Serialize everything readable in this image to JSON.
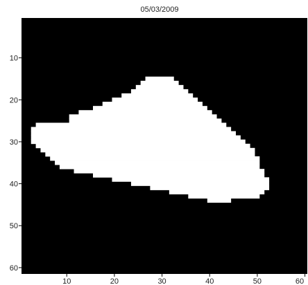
{
  "chart_data": {
    "type": "heatmap",
    "title": "05/03/2009",
    "xlabel": "",
    "ylabel": "",
    "xlim": [
      0.5,
      60.5
    ],
    "ylim": [
      0.5,
      61.5
    ],
    "x_ticks": [
      10,
      20,
      30,
      40,
      50,
      60
    ],
    "y_ticks": [
      10,
      20,
      30,
      40,
      50,
      60
    ],
    "grid": false,
    "colormap": {
      "background": "#000000",
      "mask": "#ffffff"
    },
    "mask_rows": [
      {
        "row": 15,
        "x_ranges": [
          [
            27,
            32
          ]
        ]
      },
      {
        "row": 16,
        "x_ranges": [
          [
            26,
            33
          ]
        ]
      },
      {
        "row": 17,
        "x_ranges": [
          [
            25,
            34
          ]
        ]
      },
      {
        "row": 18,
        "x_ranges": [
          [
            24,
            35
          ]
        ]
      },
      {
        "row": 19,
        "x_ranges": [
          [
            22,
            36
          ]
        ]
      },
      {
        "row": 20,
        "x_ranges": [
          [
            20,
            37
          ]
        ]
      },
      {
        "row": 21,
        "x_ranges": [
          [
            18,
            38
          ]
        ]
      },
      {
        "row": 22,
        "x_ranges": [
          [
            16,
            39
          ]
        ]
      },
      {
        "row": 23,
        "x_ranges": [
          [
            13,
            40
          ]
        ]
      },
      {
        "row": 24,
        "x_ranges": [
          [
            11,
            41
          ]
        ]
      },
      {
        "row": 25,
        "x_ranges": [
          [
            11,
            42
          ]
        ]
      },
      {
        "row": 26,
        "x_ranges": [
          [
            4,
            43
          ]
        ]
      },
      {
        "row": 27,
        "x_ranges": [
          [
            3,
            44
          ]
        ]
      },
      {
        "row": 28,
        "x_ranges": [
          [
            3,
            45
          ]
        ]
      },
      {
        "row": 29,
        "x_ranges": [
          [
            3,
            46
          ]
        ]
      },
      {
        "row": 30,
        "x_ranges": [
          [
            3,
            47
          ]
        ]
      },
      {
        "row": 31,
        "x_ranges": [
          [
            4,
            48
          ]
        ]
      },
      {
        "row": 32,
        "x_ranges": [
          [
            5,
            49
          ]
        ]
      },
      {
        "row": 33,
        "x_ranges": [
          [
            6,
            49
          ]
        ]
      },
      {
        "row": 34,
        "x_ranges": [
          [
            7,
            50
          ]
        ]
      },
      {
        "row": 35,
        "x_ranges": [
          [
            8,
            50
          ]
        ]
      },
      {
        "row": 36,
        "x_ranges": [
          [
            9,
            50
          ]
        ]
      },
      {
        "row": 37,
        "x_ranges": [
          [
            12,
            51
          ]
        ]
      },
      {
        "row": 38,
        "x_ranges": [
          [
            16,
            51
          ]
        ]
      },
      {
        "row": 39,
        "x_ranges": [
          [
            20,
            52
          ]
        ]
      },
      {
        "row": 40,
        "x_ranges": [
          [
            24,
            52
          ]
        ]
      },
      {
        "row": 41,
        "x_ranges": [
          [
            28,
            52
          ]
        ]
      },
      {
        "row": 42,
        "x_ranges": [
          [
            32,
            51
          ]
        ]
      },
      {
        "row": 43,
        "x_ranges": [
          [
            36,
            50
          ]
        ]
      },
      {
        "row": 44,
        "x_ranges": [
          [
            40,
            44
          ]
        ]
      }
    ]
  }
}
